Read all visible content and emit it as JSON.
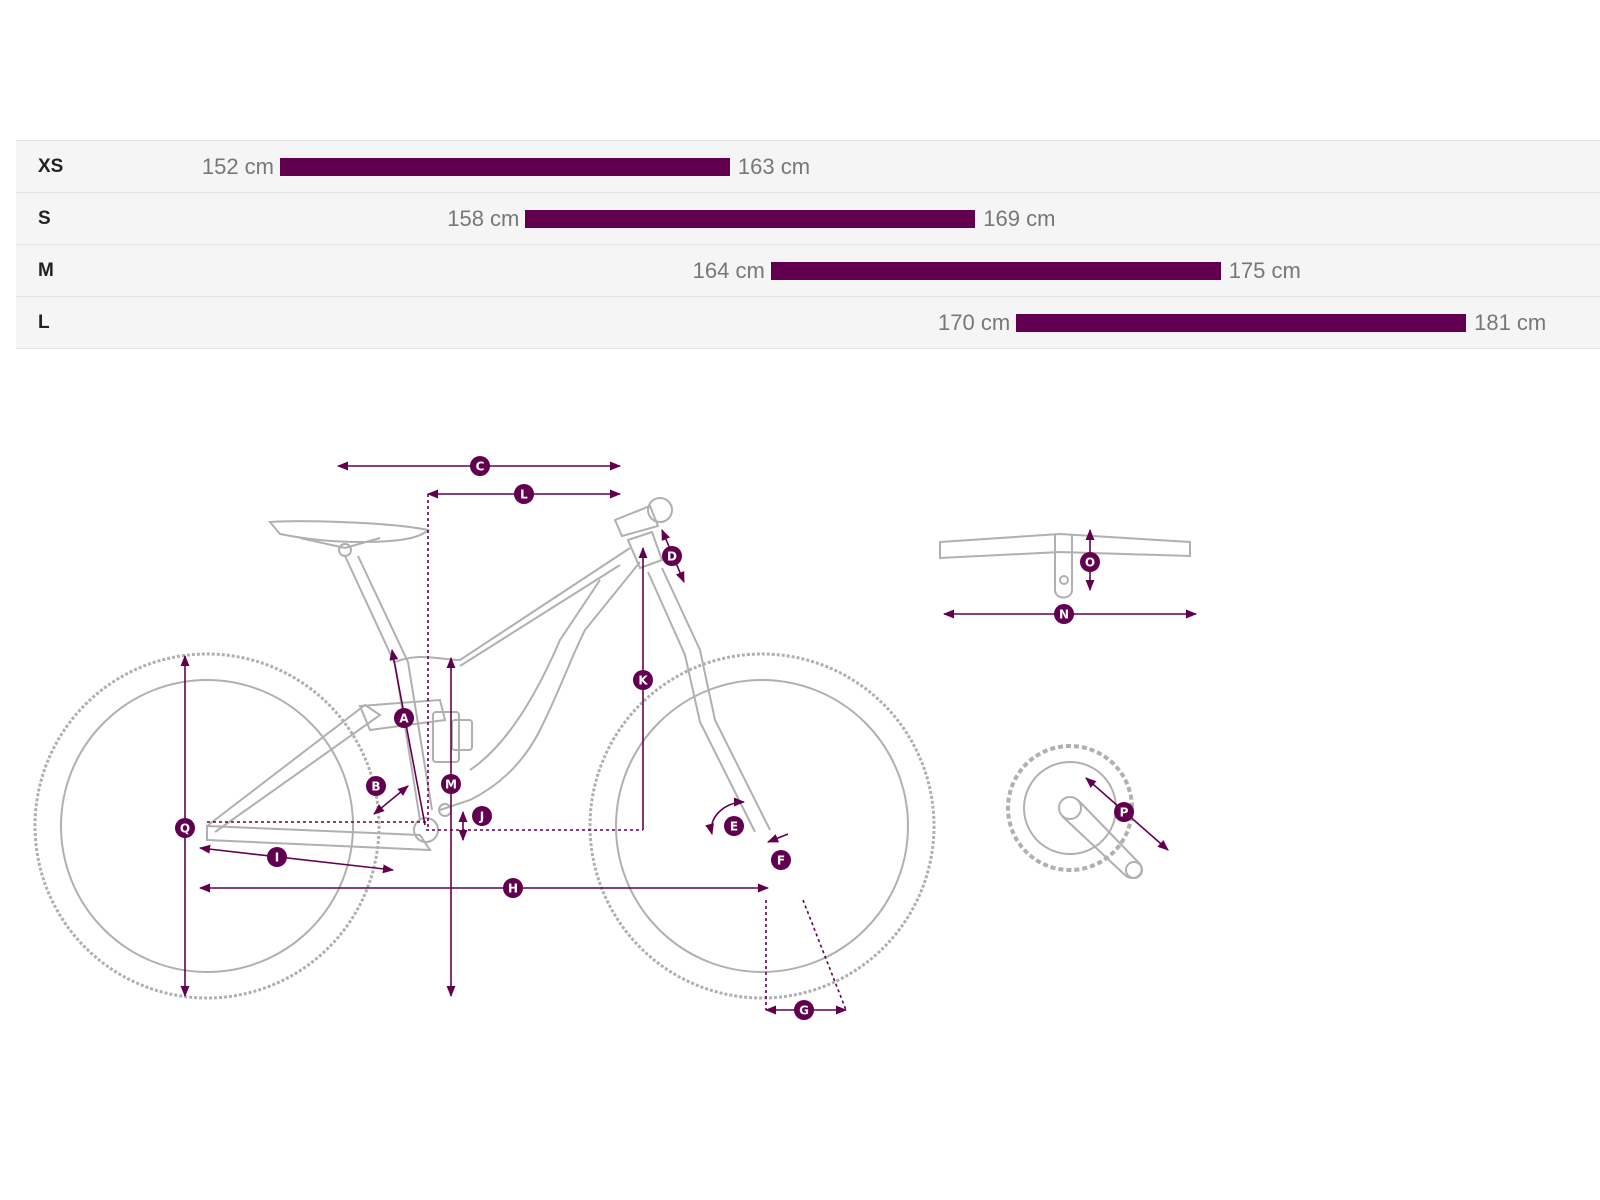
{
  "colors": {
    "accent": "#62004f",
    "outline": "#b0b0b0",
    "row_bg": "#f5f5f5"
  },
  "sizes": [
    {
      "label": "XS",
      "min_cm": 152,
      "max_cm": 163,
      "min_text": "152 cm",
      "max_text": "163 cm"
    },
    {
      "label": "S",
      "min_cm": 158,
      "max_cm": 169,
      "min_text": "158 cm",
      "max_text": "169 cm"
    },
    {
      "label": "M",
      "min_cm": 164,
      "max_cm": 175,
      "min_text": "164 cm",
      "max_text": "175 cm"
    },
    {
      "label": "L",
      "min_cm": 170,
      "max_cm": 181,
      "min_text": "170 cm",
      "max_text": "181 cm"
    }
  ],
  "diagram": {
    "markers": {
      "A": "A",
      "B": "B",
      "C": "C",
      "D": "D",
      "E": "E",
      "F": "F",
      "G": "G",
      "H": "H",
      "I": "I",
      "J": "J",
      "K": "K",
      "L": "L",
      "M": "M",
      "N": "N",
      "O": "O",
      "P": "P",
      "Q": "Q"
    }
  }
}
